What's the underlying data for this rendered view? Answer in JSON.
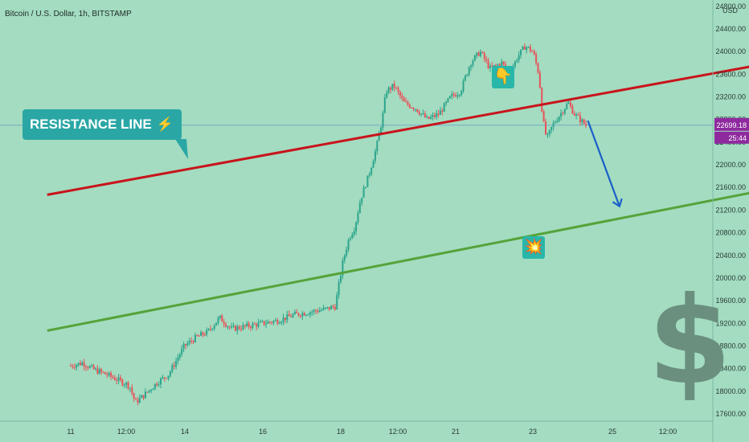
{
  "symbol": "Bitcoin / U.S. Dollar, 1h, BITSTAMP",
  "currency": "USD",
  "annotations": {
    "resistance_label": "RESISTANCE LINE",
    "resistance_icon": "lightning-bolt-icon",
    "pointer_icon": "pointing-down-hand-icon",
    "collision_icon": "collision-icon",
    "dollar_icon": "dollar-sign-icon",
    "dollar_glyph": "$"
  },
  "colors": {
    "background": "#a3dcc0",
    "resistance_line": "#c8141c",
    "support_line": "#55a33a",
    "projection_arrow": "#1a5fc8",
    "candle_up": "#2ca58d",
    "candle_down": "#e8525a",
    "callout": "#2aa7a5",
    "price_label": "#8e2a9e",
    "crosshair": "#7aa8c8"
  },
  "chart_data": {
    "type": "candlestick",
    "x_ticks": [
      "11",
      "12:00",
      "14",
      "16",
      "18",
      "12:00",
      "21",
      "23",
      "25",
      "12:00"
    ],
    "y_ticks": [
      24800,
      24400,
      24000,
      23600,
      23200,
      22800,
      22400,
      22000,
      21600,
      21200,
      20800,
      20400,
      20000,
      19600,
      19200,
      18800,
      18400,
      18000,
      17600
    ],
    "y_tick_labels": [
      "24800.00",
      "24400.00",
      "24000.00",
      "23600.00",
      "23200.00",
      "22800.00",
      "22400.00",
      "22000.00",
      "21600.00",
      "21200.00",
      "20800.00",
      "20400.00",
      "20000.00",
      "19600.00",
      "19200.00",
      "18800.00",
      "18400.00",
      "18000.00",
      "17600.00"
    ],
    "ylim": [
      17550,
      24950
    ],
    "current_price": 22699.18,
    "current_price_label": "22699.18",
    "countdown_label": "25:44",
    "price_path": [
      [
        0,
        18450
      ],
      [
        0.3,
        18500
      ],
      [
        0.6,
        18380
      ],
      [
        0.9,
        18300
      ],
      [
        1.2,
        18200
      ],
      [
        1.5,
        18100
      ],
      [
        1.65,
        17800
      ],
      [
        1.9,
        17950
      ],
      [
        2.2,
        18150
      ],
      [
        2.5,
        18300
      ],
      [
        2.7,
        18550
      ],
      [
        2.9,
        18800
      ],
      [
        3.2,
        18950
      ],
      [
        3.5,
        19050
      ],
      [
        3.8,
        19300
      ],
      [
        4.1,
        19100
      ],
      [
        4.5,
        19150
      ],
      [
        4.9,
        19200
      ],
      [
        5.3,
        19250
      ],
      [
        5.7,
        19350
      ],
      [
        6.1,
        19400
      ],
      [
        6.5,
        19450
      ],
      [
        6.75,
        19500
      ],
      [
        6.95,
        20300
      ],
      [
        7.1,
        20700
      ],
      [
        7.25,
        20900
      ],
      [
        7.4,
        21400
      ],
      [
        7.6,
        21800
      ],
      [
        7.8,
        22300
      ],
      [
        7.95,
        22800
      ],
      [
        8.05,
        23300
      ],
      [
        8.25,
        23400
      ],
      [
        8.5,
        23100
      ],
      [
        8.8,
        23000
      ],
      [
        9.1,
        22800
      ],
      [
        9.4,
        22900
      ],
      [
        9.7,
        23200
      ],
      [
        9.95,
        23300
      ],
      [
        10.2,
        23800
      ],
      [
        10.45,
        24000
      ],
      [
        10.7,
        23700
      ],
      [
        11.0,
        23800
      ],
      [
        11.2,
        23600
      ],
      [
        11.4,
        23900
      ],
      [
        11.6,
        24100
      ],
      [
        11.8,
        24000
      ],
      [
        11.95,
        23600
      ],
      [
        12.05,
        22800
      ],
      [
        12.15,
        22450
      ],
      [
        12.3,
        22700
      ],
      [
        12.5,
        22900
      ],
      [
        12.7,
        23100
      ],
      [
        12.85,
        22900
      ],
      [
        13.0,
        22800
      ],
      [
        13.15,
        22699
      ]
    ],
    "candle_count": 270,
    "seed": 7,
    "lines": [
      {
        "label": "resistance",
        "from": [
          -0.6,
          21470
        ],
        "to": [
          18.5,
          23880
        ]
      },
      {
        "label": "support",
        "from": [
          -0.6,
          19070
        ],
        "to": [
          18.5,
          21660
        ]
      }
    ],
    "projection": {
      "from": [
        13.2,
        22780
      ],
      "to": [
        14.0,
        21280
      ]
    }
  }
}
